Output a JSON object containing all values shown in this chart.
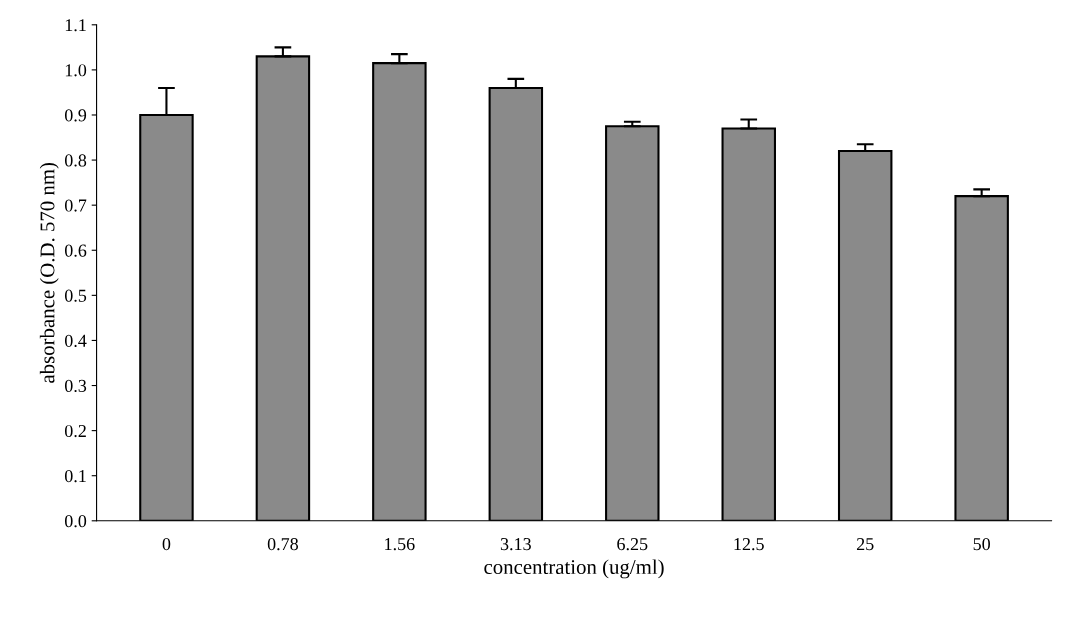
{
  "chart_data": {
    "type": "bar",
    "xlabel": "concentration (ug/ml)",
    "ylabel": "absorbance (O.D. 570 nm)",
    "categories": [
      "0",
      "0.78",
      "1.56",
      "3.13",
      "6.25",
      "12.5",
      "25",
      "50"
    ],
    "values": [
      0.9,
      1.03,
      1.015,
      0.96,
      0.875,
      0.87,
      0.82,
      0.72
    ],
    "errors": [
      [
        0.9,
        0.96
      ],
      [
        1.03,
        1.05
      ],
      [
        1.015,
        1.035
      ],
      [
        0.96,
        0.98
      ],
      [
        0.875,
        0.885
      ],
      [
        0.87,
        0.89
      ],
      [
        0.82,
        0.835
      ],
      [
        0.72,
        0.735
      ]
    ],
    "color": "#8a8a8a",
    "ylim": [
      0,
      1.1
    ],
    "yticks": [
      {
        "value": 0,
        "label": "0.0"
      },
      {
        "value": 0.1,
        "label": "0.1"
      },
      {
        "value": 0.2,
        "label": "0.2"
      },
      {
        "value": 0.3,
        "label": "0.3"
      },
      {
        "value": 0.4,
        "label": "0.4"
      },
      {
        "value": 0.5,
        "label": "0.5"
      },
      {
        "value": 0.6,
        "label": "0.6"
      },
      {
        "value": 0.7,
        "label": "0.7"
      },
      {
        "value": 0.8,
        "label": "0.8"
      },
      {
        "value": 0.9,
        "label": "0.9"
      },
      {
        "value": 1.0,
        "label": "1.0"
      },
      {
        "value": 1.1,
        "label": "1.1"
      }
    ],
    "grid": false,
    "legend": false
  }
}
